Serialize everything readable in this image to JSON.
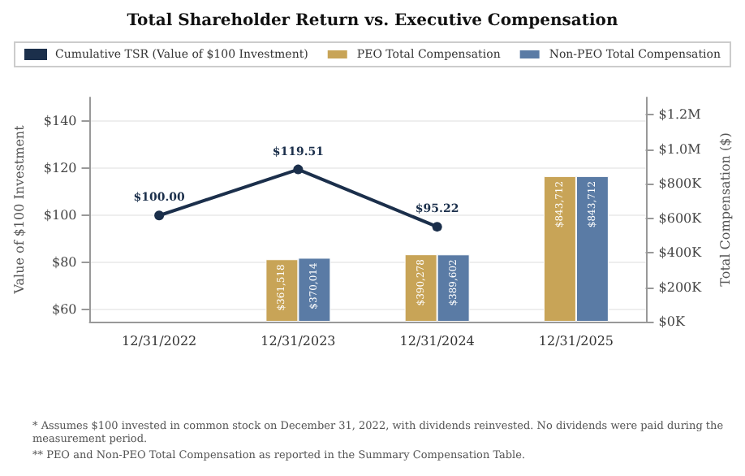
{
  "chart_data": {
    "type": "bar",
    "title": "Total Shareholder Return vs. Executive Compensation",
    "categories": [
      "12/31/2022",
      "12/31/2023",
      "12/31/2024",
      "12/31/2025"
    ],
    "series": [
      {
        "name": "Cumulative TSR (Value of $100 Investment)",
        "type": "line",
        "color": "#1b2f4b",
        "values": [
          100,
          119.51,
          95.22,
          null
        ],
        "value_labels": [
          "$100.00",
          "$119.51",
          "$95.22",
          null
        ]
      },
      {
        "name": "PEO Total Compensation",
        "axis": "y2",
        "color": "#c8a457",
        "values": [
          null,
          361518,
          390278,
          843712
        ],
        "value_labels": [
          null,
          "$361,518",
          "$390,278",
          "$843,712"
        ]
      },
      {
        "name": "Non-PEO Total Compensation",
        "axis": "y2",
        "color": "#5a7ba5",
        "values": [
          null,
          370014,
          389602,
          843712
        ],
        "value_labels": [
          null,
          "$370,014",
          "$389,602",
          "$843,712"
        ]
      }
    ],
    "ylabel": "Value of $100 Investment",
    "y2label": "Total Compensation ($)",
    "ylim": [
      55,
      150
    ],
    "yticks": [
      {
        "value": 60,
        "label": "$60"
      },
      {
        "value": 80,
        "label": "$80"
      },
      {
        "value": 100,
        "label": "$100"
      },
      {
        "value": 120,
        "label": "$120"
      },
      {
        "value": 140,
        "label": "$140"
      }
    ],
    "y2lim": [
      0,
      1300000
    ],
    "y2ticks": [
      {
        "value": 0,
        "label": "$0K"
      },
      {
        "value": 200000,
        "label": "$200K"
      },
      {
        "value": 400000,
        "label": "$400K"
      },
      {
        "value": 600000,
        "label": "$600K"
      },
      {
        "value": 800000,
        "label": "$800K"
      },
      {
        "value": 1000000,
        "label": "$1.0M"
      },
      {
        "value": 1200000,
        "label": "$1.2M"
      }
    ],
    "grid": "y",
    "legend": "top",
    "marker": "circle",
    "annotations": [
      "* Assumes $100 invested in common stock on December 31, 2022, with dividends reinvested. No dividends were paid during the measurement period.",
      "** PEO and Non-PEO Total Compensation as reported in the Summary Compensation Table."
    ]
  }
}
